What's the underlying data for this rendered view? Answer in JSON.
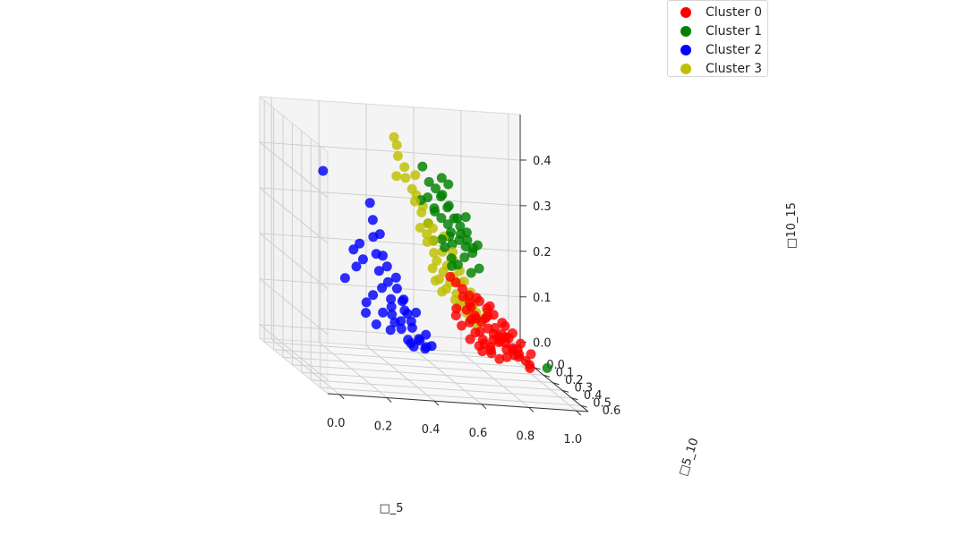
{
  "chart_data": {
    "type": "scatter",
    "projection": "3d",
    "xlabel": "□_5",
    "ylabel": "□5_10",
    "zlabel": "□10_15",
    "xticks": [
      "0.0",
      "0.2",
      "0.4",
      "0.6",
      "0.8",
      "1.0"
    ],
    "yticks": [
      "0.0",
      "0.1",
      "0.2",
      "0.3",
      "0.4",
      "0.5",
      "0.6"
    ],
    "zticks": [
      "0.0",
      "0.1",
      "0.2",
      "0.3",
      "0.4"
    ],
    "xlim": [
      -0.05,
      1.05
    ],
    "ylim": [
      -0.05,
      0.68
    ],
    "zlim": [
      -0.03,
      0.5
    ],
    "grid": true,
    "legend_position": "top-right",
    "series": [
      {
        "name": "Cluster 0",
        "color": "#ff0000",
        "points": [
          [
            0.78,
            0.22,
            0.08
          ],
          [
            0.8,
            0.24,
            0.07
          ],
          [
            0.82,
            0.25,
            0.06
          ],
          [
            0.76,
            0.2,
            0.09
          ],
          [
            0.84,
            0.27,
            0.05
          ],
          [
            0.86,
            0.28,
            0.06
          ],
          [
            0.88,
            0.3,
            0.04
          ],
          [
            0.79,
            0.26,
            0.1
          ],
          [
            0.81,
            0.29,
            0.08
          ],
          [
            0.83,
            0.31,
            0.07
          ],
          [
            0.77,
            0.18,
            0.05
          ],
          [
            0.75,
            0.17,
            0.07
          ],
          [
            0.9,
            0.32,
            0.03
          ],
          [
            0.92,
            0.34,
            0.02
          ],
          [
            0.85,
            0.23,
            0.04
          ],
          [
            0.87,
            0.26,
            0.03
          ],
          [
            0.74,
            0.21,
            0.11
          ],
          [
            0.73,
            0.19,
            0.1
          ],
          [
            0.8,
            0.2,
            0.03
          ],
          [
            0.82,
            0.22,
            0.02
          ],
          [
            0.78,
            0.28,
            0.12
          ],
          [
            0.8,
            0.3,
            0.11
          ],
          [
            0.76,
            0.25,
            0.13
          ],
          [
            0.84,
            0.32,
            0.09
          ],
          [
            0.86,
            0.35,
            0.08
          ],
          [
            0.89,
            0.36,
            0.06
          ],
          [
            0.91,
            0.29,
            0.02
          ],
          [
            0.72,
            0.16,
            0.06
          ],
          [
            0.7,
            0.15,
            0.08
          ],
          [
            0.94,
            0.33,
            0.01
          ],
          [
            0.83,
            0.2,
            0.01
          ],
          [
            0.79,
            0.17,
            0.02
          ],
          [
            0.77,
            0.23,
            0.06
          ],
          [
            0.81,
            0.27,
            0.05
          ],
          [
            0.75,
            0.24,
            0.09
          ],
          [
            0.85,
            0.3,
            0.05
          ],
          [
            0.87,
            0.33,
            0.04
          ],
          [
            0.73,
            0.22,
            0.12
          ],
          [
            0.71,
            0.2,
            0.13
          ],
          [
            0.88,
            0.24,
            0.01
          ],
          [
            0.9,
            0.27,
            0.02
          ],
          [
            0.74,
            0.27,
            0.14
          ],
          [
            0.78,
            0.31,
            0.13
          ],
          [
            0.82,
            0.34,
            0.1
          ],
          [
            0.76,
            0.15,
            0.03
          ],
          [
            0.8,
            0.18,
            0.01
          ],
          [
            0.84,
            0.36,
            0.07
          ],
          [
            0.86,
            0.21,
            0.0
          ],
          [
            0.69,
            0.18,
            0.1
          ],
          [
            0.93,
            0.37,
            0.04
          ],
          [
            0.95,
            0.31,
            0.0
          ],
          [
            0.77,
            0.29,
            0.1
          ],
          [
            0.79,
            0.21,
            0.04
          ],
          [
            0.83,
            0.28,
            0.06
          ],
          [
            0.81,
            0.24,
            0.03
          ],
          [
            0.75,
            0.19,
            0.08
          ],
          [
            0.72,
            0.24,
            0.14
          ],
          [
            0.7,
            0.22,
            0.15
          ],
          [
            0.68,
            0.2,
            0.16
          ],
          [
            0.66,
            0.19,
            0.17
          ],
          [
            1.0,
            0.05,
            0.0
          ]
        ]
      },
      {
        "name": "Cluster 1",
        "color": "#008000",
        "points": [
          [
            0.52,
            0.38,
            0.34
          ],
          [
            0.54,
            0.4,
            0.33
          ],
          [
            0.56,
            0.42,
            0.32
          ],
          [
            0.58,
            0.4,
            0.3
          ],
          [
            0.5,
            0.36,
            0.31
          ],
          [
            0.55,
            0.44,
            0.36
          ],
          [
            0.57,
            0.46,
            0.34
          ],
          [
            0.53,
            0.42,
            0.38
          ],
          [
            0.6,
            0.44,
            0.29
          ],
          [
            0.62,
            0.46,
            0.28
          ],
          [
            0.51,
            0.4,
            0.35
          ],
          [
            0.59,
            0.48,
            0.31
          ],
          [
            0.61,
            0.5,
            0.3
          ],
          [
            0.49,
            0.38,
            0.37
          ],
          [
            0.55,
            0.38,
            0.28
          ],
          [
            0.57,
            0.36,
            0.26
          ],
          [
            0.53,
            0.34,
            0.27
          ],
          [
            0.63,
            0.42,
            0.25
          ],
          [
            0.64,
            0.48,
            0.27
          ],
          [
            0.58,
            0.5,
            0.33
          ],
          [
            0.56,
            0.52,
            0.35
          ],
          [
            0.52,
            0.46,
            0.39
          ],
          [
            0.5,
            0.44,
            0.4
          ],
          [
            0.6,
            0.52,
            0.32
          ],
          [
            0.62,
            0.54,
            0.29
          ],
          [
            0.54,
            0.48,
            0.37
          ],
          [
            0.48,
            0.42,
            0.41
          ],
          [
            0.59,
            0.38,
            0.24
          ],
          [
            0.61,
            0.4,
            0.23
          ],
          [
            0.65,
            0.44,
            0.22
          ],
          [
            0.47,
            0.36,
            0.36
          ],
          [
            0.66,
            0.5,
            0.24
          ],
          [
            0.55,
            0.46,
            0.3
          ],
          [
            0.57,
            0.44,
            0.28
          ],
          [
            0.53,
            0.5,
            0.42
          ],
          [
            0.58,
            0.56,
            0.36
          ],
          [
            0.51,
            0.48,
            0.43
          ],
          [
            0.63,
            0.56,
            0.3
          ],
          [
            0.6,
            0.36,
            0.22
          ],
          [
            0.46,
            0.4,
            0.44
          ],
          [
            0.9,
            0.62,
            0.05
          ]
        ]
      },
      {
        "name": "Cluster 2",
        "color": "#0000ff",
        "points": [
          [
            0.35,
            0.3,
            0.2
          ],
          [
            0.38,
            0.32,
            0.18
          ],
          [
            0.4,
            0.28,
            0.15
          ],
          [
            0.42,
            0.3,
            0.13
          ],
          [
            0.44,
            0.26,
            0.1
          ],
          [
            0.46,
            0.28,
            0.08
          ],
          [
            0.48,
            0.24,
            0.06
          ],
          [
            0.5,
            0.26,
            0.04
          ],
          [
            0.36,
            0.22,
            0.14
          ],
          [
            0.34,
            0.24,
            0.18
          ],
          [
            0.32,
            0.26,
            0.22
          ],
          [
            0.3,
            0.28,
            0.26
          ],
          [
            0.52,
            0.22,
            0.03
          ],
          [
            0.54,
            0.24,
            0.02
          ],
          [
            0.45,
            0.2,
            0.05
          ],
          [
            0.47,
            0.22,
            0.03
          ],
          [
            0.41,
            0.2,
            0.08
          ],
          [
            0.43,
            0.18,
            0.06
          ],
          [
            0.39,
            0.24,
            0.12
          ],
          [
            0.37,
            0.26,
            0.16
          ],
          [
            0.33,
            0.2,
            0.12
          ],
          [
            0.31,
            0.18,
            0.1
          ],
          [
            0.28,
            0.22,
            0.2
          ],
          [
            0.26,
            0.2,
            0.18
          ],
          [
            0.49,
            0.2,
            0.02
          ],
          [
            0.51,
            0.18,
            0.01
          ],
          [
            0.42,
            0.16,
            0.04
          ],
          [
            0.38,
            0.18,
            0.08
          ],
          [
            0.36,
            0.16,
            0.05
          ],
          [
            0.55,
            0.2,
            0.01
          ],
          [
            0.29,
            0.3,
            0.3
          ],
          [
            0.27,
            0.32,
            0.34
          ],
          [
            0.25,
            0.26,
            0.24
          ],
          [
            0.44,
            0.22,
            0.07
          ],
          [
            0.46,
            0.24,
            0.09
          ],
          [
            0.4,
            0.22,
            0.1
          ],
          [
            0.34,
            0.28,
            0.22
          ],
          [
            0.32,
            0.3,
            0.27
          ],
          [
            0.53,
            0.26,
            0.05
          ],
          [
            0.48,
            0.28,
            0.1
          ],
          [
            0.22,
            0.18,
            0.15
          ],
          [
            0.24,
            0.22,
            0.22
          ],
          [
            0.3,
            0.2,
            0.08
          ],
          [
            0.57,
            0.22,
            0.02
          ],
          [
            0.43,
            0.26,
            0.12
          ],
          [
            0.08,
            0.3,
            0.4
          ]
        ]
      },
      {
        "name": "Cluster 3",
        "color": "#bfbf00",
        "points": [
          [
            0.6,
            0.34,
            0.18
          ],
          [
            0.62,
            0.36,
            0.16
          ],
          [
            0.64,
            0.38,
            0.15
          ],
          [
            0.58,
            0.32,
            0.2
          ],
          [
            0.56,
            0.3,
            0.22
          ],
          [
            0.66,
            0.4,
            0.14
          ],
          [
            0.6,
            0.38,
            0.2
          ],
          [
            0.62,
            0.4,
            0.19
          ],
          [
            0.58,
            0.36,
            0.22
          ],
          [
            0.54,
            0.32,
            0.24
          ],
          [
            0.64,
            0.34,
            0.13
          ],
          [
            0.66,
            0.36,
            0.12
          ],
          [
            0.68,
            0.42,
            0.13
          ],
          [
            0.55,
            0.28,
            0.2
          ],
          [
            0.57,
            0.3,
            0.18
          ],
          [
            0.61,
            0.42,
            0.22
          ],
          [
            0.59,
            0.4,
            0.24
          ],
          [
            0.53,
            0.34,
            0.27
          ],
          [
            0.51,
            0.32,
            0.28
          ],
          [
            0.67,
            0.38,
            0.11
          ],
          [
            0.63,
            0.32,
            0.14
          ],
          [
            0.65,
            0.42,
            0.16
          ],
          [
            0.7,
            0.44,
            0.12
          ],
          [
            0.56,
            0.36,
            0.25
          ],
          [
            0.52,
            0.3,
            0.26
          ],
          [
            0.6,
            0.3,
            0.16
          ],
          [
            0.62,
            0.44,
            0.2
          ],
          [
            0.58,
            0.42,
            0.26
          ],
          [
            0.5,
            0.36,
            0.31
          ],
          [
            0.48,
            0.34,
            0.33
          ],
          [
            0.46,
            0.32,
            0.35
          ],
          [
            0.44,
            0.34,
            0.38
          ],
          [
            0.42,
            0.32,
            0.4
          ],
          [
            0.45,
            0.36,
            0.37
          ],
          [
            0.47,
            0.38,
            0.35
          ],
          [
            0.4,
            0.36,
            0.43
          ],
          [
            0.38,
            0.34,
            0.45
          ],
          [
            0.43,
            0.4,
            0.42
          ],
          [
            0.36,
            0.38,
            0.48
          ],
          [
            0.34,
            0.4,
            0.5
          ],
          [
            0.64,
            0.46,
            0.18
          ],
          [
            0.69,
            0.4,
            0.1
          ],
          [
            0.57,
            0.26,
            0.17
          ],
          [
            0.71,
            0.46,
            0.14
          ],
          [
            0.49,
            0.3,
            0.29
          ],
          [
            0.59,
            0.28,
            0.15
          ],
          [
            0.66,
            0.44,
            0.15
          ],
          [
            0.52,
            0.36,
            0.3
          ],
          [
            0.55,
            0.4,
            0.29
          ],
          [
            0.39,
            0.3,
            0.4
          ]
        ]
      }
    ]
  }
}
